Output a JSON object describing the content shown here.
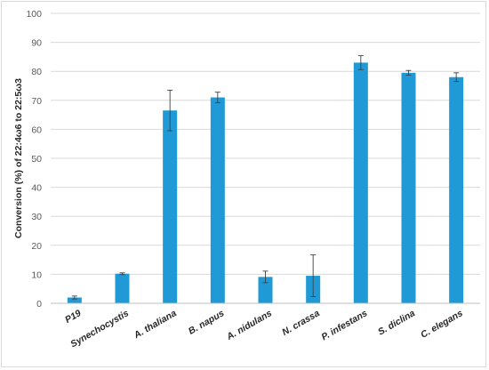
{
  "chart_data": {
    "type": "bar",
    "title": "",
    "xlabel": "",
    "ylabel": "Conversion (%) of 22:4ω6 to 22:5ω3",
    "ylim": [
      0,
      100
    ],
    "yticks": [
      0,
      10,
      20,
      30,
      40,
      50,
      60,
      70,
      80,
      90,
      100
    ],
    "grid": true,
    "legend": "none",
    "bar_color": "#1f9ad6",
    "grid_color": "#d9d9d9",
    "categories": [
      "P19",
      "Synechocystis",
      "A. thaliana",
      "B. napus",
      "A. nidulans",
      "N. crassa",
      "P. infestans",
      "S. diclina",
      "C. elegans"
    ],
    "values": [
      2,
      10.2,
      66.5,
      71,
      9.1,
      9.5,
      83,
      79.5,
      78
    ],
    "errors": [
      0.5,
      0.3,
      7,
      1.8,
      2,
      7.2,
      2.4,
      0.8,
      1.5
    ]
  }
}
